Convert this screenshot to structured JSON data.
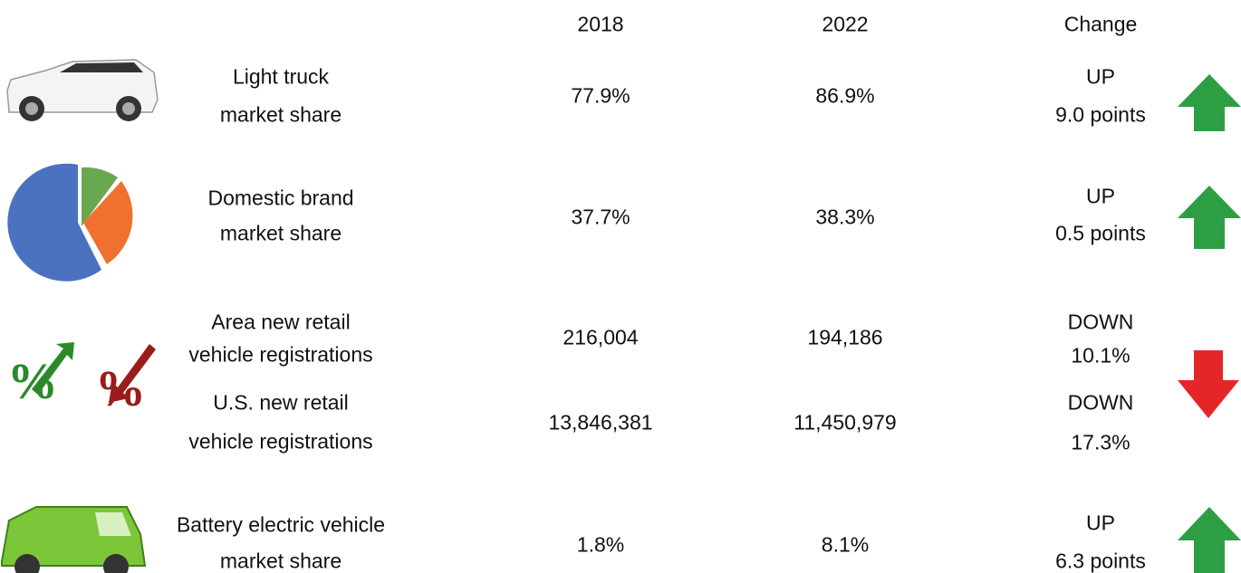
{
  "header": {
    "columns": [
      "2018",
      "2022",
      "Change"
    ]
  },
  "rows": [
    {
      "label": [
        "Light truck",
        "market share"
      ],
      "value_2018": "77.9%",
      "value_2022": "86.9%",
      "change": [
        "UP",
        "9.0 points"
      ]
    },
    {
      "label": [
        "Domestic brand",
        "market share"
      ],
      "value_2018": "37.7%",
      "value_2022": "38.3%",
      "change": [
        "UP",
        "0.5 points"
      ]
    },
    {
      "label": [
        "Area new retail",
        "vehicle registrations"
      ],
      "value_2018": "216,004",
      "value_2022": "194,186",
      "change": [
        "DOWN",
        "10.1%"
      ]
    },
    {
      "label": [
        "U.S. new retail",
        "vehicle registrations"
      ],
      "value_2018": "13,846,381",
      "value_2022": "11,450,979",
      "change": [
        "DOWN",
        "17.3%"
      ]
    },
    {
      "label": [
        "Battery electric vehicle",
        "market share"
      ],
      "value_2018": "1.8%",
      "value_2022": "8.1%",
      "change": [
        "UP",
        "6.3 points"
      ]
    }
  ]
}
